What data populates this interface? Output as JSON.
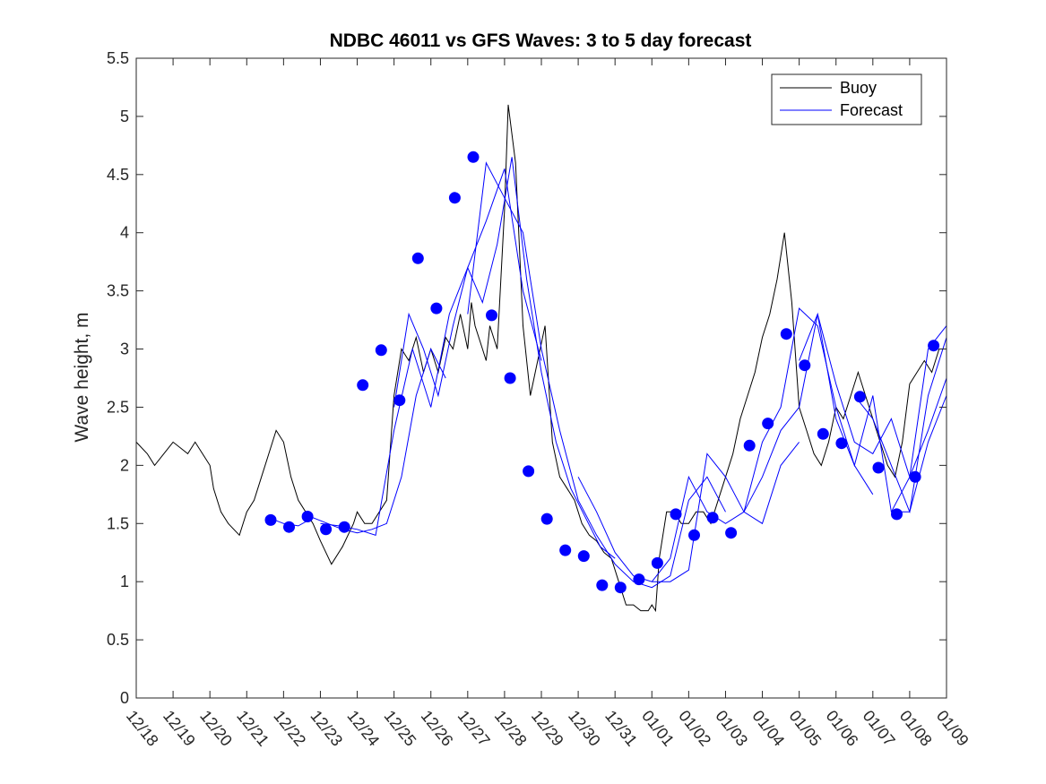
{
  "chart_data": {
    "type": "line",
    "title": "NDBC 46011 vs GFS Waves: 3 to 5 day forecast",
    "xlabel": "",
    "ylabel": "Wave height, m",
    "ylim": [
      0,
      5.5
    ],
    "yticks": [
      0,
      0.5,
      1,
      1.5,
      2,
      2.5,
      3,
      3.5,
      4,
      4.5,
      5,
      5.5
    ],
    "ytick_labels": [
      "0",
      "0.5",
      "1",
      "1.5",
      "2",
      "2.5",
      "3",
      "3.5",
      "4",
      "4.5",
      "5",
      "5.5"
    ],
    "xlim_days": [
      0,
      22
    ],
    "xtick_labels": [
      "12/18",
      "12/19",
      "12/20",
      "12/21",
      "12/22",
      "12/23",
      "12/24",
      "12/25",
      "12/26",
      "12/27",
      "12/28",
      "12/29",
      "12/30",
      "12/31",
      "01/01",
      "01/02",
      "01/03",
      "01/04",
      "01/05",
      "01/06",
      "01/07",
      "01/08",
      "01/09"
    ],
    "legend": {
      "location": "top-right",
      "entries": [
        "Buoy",
        "Forecast"
      ]
    },
    "colors": {
      "buoy": "#000000",
      "forecast": "#0000ff",
      "markers": "#0000ff"
    },
    "buoy": {
      "name": "Buoy",
      "x": [
        0,
        0.3,
        0.5,
        1,
        1.4,
        1.6,
        2.0,
        2.1,
        2.3,
        2.5,
        2.8,
        3.0,
        3.2,
        3.4,
        3.6,
        3.8,
        4.0,
        4.2,
        4.4,
        4.6,
        4.8,
        5.0,
        5.3,
        5.6,
        5.9,
        6.0,
        6.2,
        6.4,
        6.6,
        6.8,
        7.0,
        7.2,
        7.4,
        7.6,
        7.8,
        8.0,
        8.2,
        8.4,
        8.6,
        8.8,
        9.0,
        9.1,
        9.2,
        9.4,
        9.5,
        9.6,
        9.8,
        10.0,
        10.1,
        10.3,
        10.5,
        10.7,
        10.9,
        11.1,
        11.3,
        11.5,
        11.7,
        11.9,
        12.1,
        12.3,
        12.5,
        12.7,
        12.9,
        13.1,
        13.3,
        13.5,
        13.7,
        13.9,
        14.0,
        14.1,
        14.2,
        14.4,
        14.6,
        14.8,
        15.0,
        15.2,
        15.4,
        15.6,
        15.8,
        16.0,
        16.2,
        16.4,
        16.6,
        16.8,
        17.0,
        17.2,
        17.4,
        17.6,
        17.8,
        18.0,
        18.2,
        18.4,
        18.6,
        18.8,
        19.0,
        19.2,
        19.4,
        19.6,
        19.8,
        20.0,
        20.2,
        20.4,
        20.6,
        20.8,
        21.0,
        21.2,
        21.4,
        21.6,
        21.8,
        22.0
      ],
      "values": [
        2.2,
        2.1,
        2.0,
        2.2,
        2.1,
        2.2,
        2.0,
        1.8,
        1.6,
        1.5,
        1.4,
        1.6,
        1.7,
        1.9,
        2.1,
        2.3,
        2.2,
        1.9,
        1.7,
        1.6,
        1.5,
        1.35,
        1.15,
        1.3,
        1.5,
        1.6,
        1.5,
        1.5,
        1.6,
        1.7,
        2.6,
        3.0,
        2.9,
        3.1,
        2.8,
        3.0,
        2.8,
        3.1,
        3.0,
        3.3,
        3.0,
        3.4,
        3.2,
        3.0,
        2.9,
        3.2,
        3.0,
        4.2,
        5.1,
        4.6,
        3.2,
        2.6,
        2.9,
        3.2,
        2.2,
        1.9,
        1.8,
        1.7,
        1.5,
        1.4,
        1.35,
        1.25,
        1.2,
        1.0,
        0.8,
        0.8,
        0.75,
        0.75,
        0.8,
        0.75,
        1.2,
        1.6,
        1.6,
        1.5,
        1.5,
        1.6,
        1.6,
        1.5,
        1.7,
        1.9,
        2.1,
        2.4,
        2.6,
        2.8,
        3.1,
        3.3,
        3.6,
        4.0,
        3.4,
        2.5,
        2.3,
        2.1,
        2.0,
        2.2,
        2.5,
        2.4,
        2.6,
        2.8,
        2.6,
        2.4,
        2.2,
        2.0,
        1.9,
        2.2,
        2.7,
        2.8,
        2.9,
        2.8,
        3.0,
        3.0
      ]
    },
    "forecast_series": [
      {
        "name": "Forecast",
        "x": [
          3.6,
          4.0,
          4.4,
          4.8,
          5.2,
          5.6,
          6.0,
          6.4,
          6.8,
          7.2,
          7.6,
          8.0,
          8.4
        ],
        "values": [
          1.55,
          1.5,
          1.48,
          1.55,
          1.5,
          1.45,
          1.42,
          1.45,
          1.5,
          1.9,
          2.6,
          3.0,
          2.75
        ]
      },
      {
        "name": "Forecast",
        "x": [
          5.0,
          5.5,
          6.0,
          6.5,
          7.0,
          7.5,
          8.0,
          8.5,
          9.0,
          9.5,
          10.0,
          10.5,
          11.0
        ],
        "values": [
          1.5,
          1.48,
          1.45,
          1.4,
          2.3,
          3.0,
          2.5,
          3.3,
          3.7,
          4.1,
          4.55,
          3.5,
          2.9
        ]
      },
      {
        "name": "Forecast",
        "x": [
          7.0,
          7.4,
          7.8,
          8.2,
          8.6,
          9.0,
          9.4,
          9.8,
          10.2,
          10.6,
          11.0,
          11.4,
          11.8,
          12.2,
          12.6,
          13.0
        ],
        "values": [
          2.5,
          3.3,
          3.0,
          2.6,
          3.2,
          3.7,
          3.4,
          3.9,
          4.65,
          3.6,
          2.8,
          2.2,
          1.8,
          1.55,
          1.3,
          1.2
        ]
      },
      {
        "name": "Forecast",
        "x": [
          9.0,
          9.5,
          10.0,
          10.5,
          11.0,
          11.5,
          12.0,
          12.5,
          13.0,
          13.5,
          14.0,
          14.5,
          15.0,
          15.5,
          16.0
        ],
        "values": [
          3.3,
          4.6,
          4.3,
          4.0,
          3.0,
          2.3,
          1.7,
          1.4,
          1.15,
          1.0,
          0.95,
          1.05,
          1.7,
          1.9,
          1.6
        ]
      },
      {
        "name": "Forecast",
        "x": [
          12.0,
          12.5,
          13.0,
          13.5,
          14.0,
          14.5,
          15.0,
          15.5,
          16.0,
          16.5,
          17.0,
          17.5,
          18.0
        ],
        "values": [
          1.9,
          1.6,
          1.25,
          1.05,
          1.0,
          1.0,
          1.1,
          2.1,
          1.9,
          1.6,
          1.5,
          2.0,
          2.2
        ]
      },
      {
        "name": "Forecast",
        "x": [
          14.0,
          14.5,
          15.0,
          15.5,
          16.0,
          16.5,
          17.0,
          17.5,
          18.0,
          18.5,
          19.0,
          19.5,
          20.0
        ],
        "values": [
          1.0,
          1.2,
          1.9,
          1.6,
          1.5,
          1.6,
          2.2,
          2.5,
          3.35,
          3.2,
          2.5,
          2.0,
          1.75
        ]
      },
      {
        "name": "Forecast",
        "x": [
          16.5,
          17.0,
          17.5,
          18.0,
          18.5,
          19.0,
          19.5,
          20.0,
          20.5,
          21.0,
          21.5,
          22.0
        ],
        "values": [
          1.6,
          1.9,
          2.3,
          2.5,
          3.3,
          2.7,
          2.2,
          2.1,
          2.4,
          1.9,
          2.3,
          2.75
        ]
      },
      {
        "name": "Forecast",
        "x": [
          18.0,
          18.5,
          19.0,
          19.5,
          20.0,
          20.5,
          21.0,
          21.5,
          22.0
        ],
        "values": [
          2.9,
          3.3,
          2.4,
          2.0,
          2.6,
          1.6,
          1.6,
          2.2,
          2.6
        ]
      },
      {
        "name": "Forecast",
        "x": [
          19.5,
          20.0,
          20.5,
          21.0,
          21.5,
          22.0
        ],
        "values": [
          2.6,
          2.4,
          2.0,
          1.6,
          2.6,
          3.1
        ]
      },
      {
        "name": "Forecast",
        "x": [
          20.5,
          21.0,
          21.5,
          22.0
        ],
        "values": [
          1.6,
          1.9,
          3.0,
          3.2
        ]
      }
    ],
    "markers": {
      "x": [
        3.65,
        4.15,
        4.65,
        5.15,
        5.65,
        6.15,
        6.65,
        7.15,
        7.65,
        8.15,
        8.65,
        9.15,
        9.65,
        10.15,
        10.65,
        11.15,
        11.65,
        12.15,
        12.65,
        13.15,
        13.65,
        14.15,
        14.65,
        15.15,
        15.65,
        16.15,
        16.65,
        17.15,
        17.65,
        18.15,
        18.65,
        19.15,
        19.65,
        20.15,
        20.65,
        21.15,
        21.65
      ],
      "values": [
        1.53,
        1.47,
        1.56,
        1.45,
        1.47,
        2.69,
        2.99,
        2.56,
        3.78,
        3.35,
        4.3,
        4.65,
        3.29,
        2.75,
        1.95,
        1.54,
        1.27,
        1.22,
        0.97,
        0.95,
        1.02,
        1.16,
        1.58,
        1.4,
        1.55,
        1.42,
        2.17,
        2.36,
        3.13,
        2.86,
        2.27,
        2.19,
        2.59,
        1.98,
        1.58,
        1.9,
        3.03
      ]
    }
  }
}
